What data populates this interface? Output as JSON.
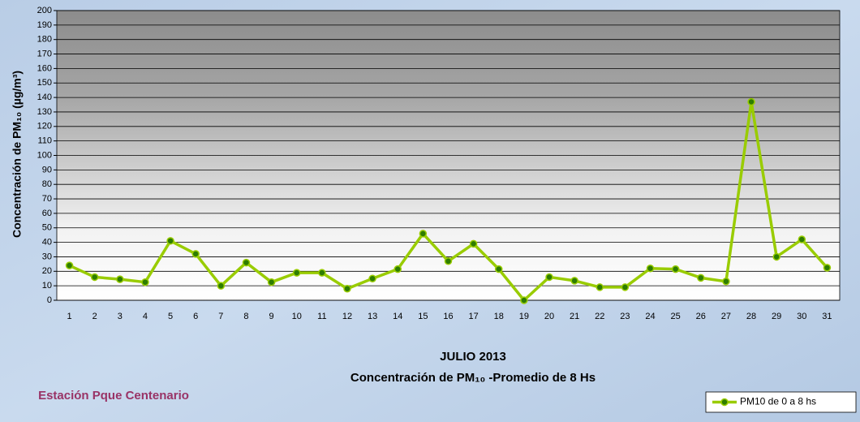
{
  "chart_data": {
    "type": "line",
    "title": "JULIO 2013",
    "subtitle": "Concentración de PM₁₀ -Promedio de 8 Hs",
    "ylabel": "Concentración de PM₁₀ (µg/m³)",
    "annotation": "Estación Pque Centenario",
    "categories": [
      "1",
      "2",
      "3",
      "4",
      "5",
      "6",
      "7",
      "8",
      "9",
      "10",
      "11",
      "12",
      "13",
      "14",
      "15",
      "16",
      "17",
      "18",
      "19",
      "20",
      "21",
      "22",
      "23",
      "24",
      "25",
      "26",
      "27",
      "28",
      "29",
      "30",
      "31"
    ],
    "series": [
      {
        "name": "PM10 de 0 a 8 hs",
        "color": "#99cc00",
        "values": [
          24,
          16,
          14.5,
          12.5,
          41,
          32,
          10,
          26,
          12.5,
          19,
          19,
          8,
          15,
          21.5,
          46,
          27,
          39,
          21.5,
          0,
          16,
          13.5,
          9,
          9,
          22,
          21.5,
          15.5,
          13,
          137,
          30,
          42,
          22.5
        ]
      }
    ],
    "ylim": [
      0,
      200
    ],
    "yticks": [
      0,
      10,
      20,
      30,
      40,
      50,
      60,
      70,
      80,
      90,
      100,
      110,
      120,
      130,
      140,
      150,
      160,
      170,
      180,
      190,
      200
    ],
    "grid": true,
    "legend": "bottom-right"
  }
}
